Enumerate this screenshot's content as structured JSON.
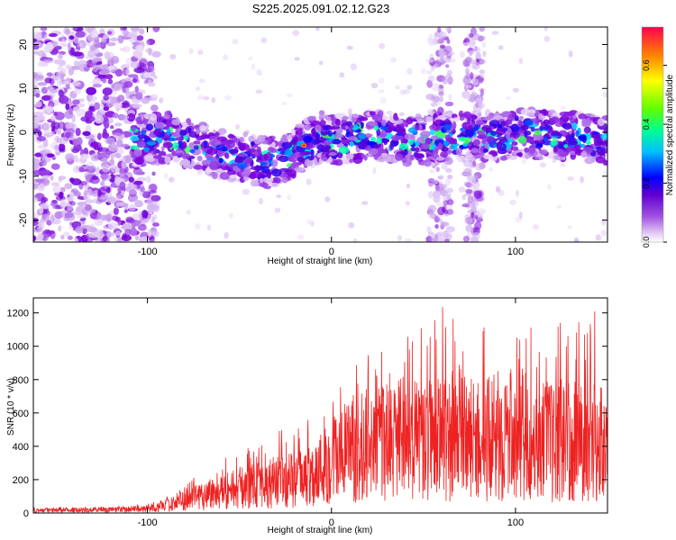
{
  "title": "S225.2025.091.02.12.G23",
  "chart_data": [
    {
      "type": "heatmap",
      "xlabel": "Height of straight line (km)",
      "ylabel": "Frequency (Hz)",
      "xlim": [
        -162,
        150
      ],
      "ylim": [
        -25,
        24
      ],
      "xticks": [
        -100,
        0,
        100
      ],
      "yticks": [
        -20,
        -10,
        0,
        10,
        20
      ],
      "colorbar": {
        "label": "Normalized spectral amplitude",
        "range": [
          0,
          0.73
        ],
        "ticks": [
          0.0,
          0.2,
          0.4,
          0.6
        ],
        "tick_labels": [
          "0.0",
          "0.2",
          "0.4",
          "0.6"
        ],
        "colormap": [
          "#ffffff",
          "#d8b8f0",
          "#8a2be2",
          "#5a00d0",
          "#0000ff",
          "#00c8ff",
          "#00ff80",
          "#ffff00",
          "#ff8000",
          "#ff0050"
        ]
      },
      "ridge": {
        "x": [
          -105,
          -90,
          -75,
          -60,
          -45,
          -35,
          -25,
          -15,
          -5,
          0,
          15,
          30,
          45,
          55,
          65,
          75,
          90,
          105,
          120,
          135,
          150
        ],
        "frequency": [
          -2,
          -1,
          -3,
          -5,
          -6,
          -7,
          -6,
          -3,
          -1,
          -2,
          -1,
          -1,
          -2,
          -2,
          -1,
          -1,
          -1,
          0,
          -1,
          -1,
          -2
        ]
      },
      "noisy_region_x": [
        -162,
        -100
      ],
      "vertical_streaks_x": [
        [
          53,
          65
        ],
        [
          73,
          82
        ]
      ]
    },
    {
      "type": "line",
      "xlabel": "Height of straight line (km)",
      "ylabel": "SNR (10 * v/v)",
      "xlim": [
        -162,
        150
      ],
      "ylim": [
        0,
        1290
      ],
      "xticks": [
        -100,
        0,
        100
      ],
      "yticks": [
        0,
        200,
        400,
        600,
        800,
        1000,
        1200
      ],
      "color": "#ee2222",
      "series": [
        {
          "x": [
            -160,
            -140,
            -120,
            -100,
            -90,
            -80,
            -70,
            -60,
            -50,
            -40,
            -30,
            -20,
            -10,
            0,
            10,
            20,
            30,
            40,
            50,
            60,
            70,
            80,
            90,
            100,
            110,
            120,
            130,
            140,
            150
          ],
          "mean": [
            15,
            18,
            20,
            25,
            45,
            80,
            110,
            130,
            150,
            170,
            185,
            200,
            230,
            320,
            380,
            400,
            420,
            450,
            440,
            450,
            470,
            420,
            460,
            470,
            440,
            430,
            450,
            430,
            420
          ],
          "peak": [
            40,
            35,
            40,
            55,
            100,
            170,
            250,
            330,
            360,
            440,
            500,
            550,
            640,
            820,
            900,
            980,
            1050,
            1100,
            1150,
            1290,
            1120,
            1150,
            1180,
            1060,
            1130,
            1220,
            1150,
            1240,
            1260
          ]
        }
      ]
    }
  ]
}
